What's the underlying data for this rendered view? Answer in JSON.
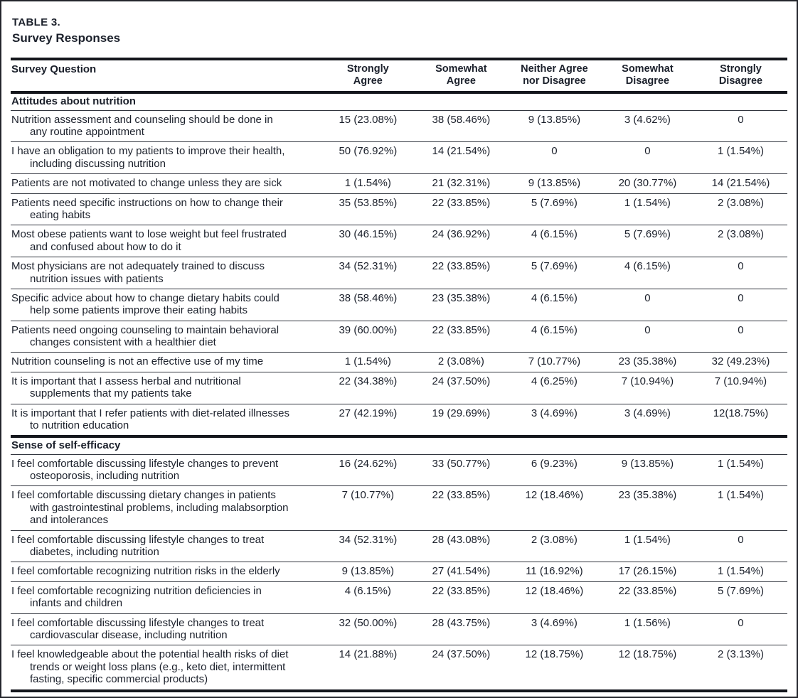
{
  "table": {
    "label": "TABLE 3.",
    "title": "Survey Responses",
    "columns": [
      "Survey Question",
      "Strongly\nAgree",
      "Somewhat\nAgree",
      "Neither Agree\nnor Disagree",
      "Somewhat\nDisagree",
      "Strongly\nDisagree"
    ],
    "sections": [
      {
        "title": "Attitudes about nutrition",
        "rows": [
          {
            "question": "Nutrition assessment and counseling should be done in any routine appointment",
            "values": [
              "15 (23.08%)",
              "38 (58.46%)",
              "9 (13.85%)",
              "3 (4.62%)",
              "0"
            ]
          },
          {
            "question": "I have an obligation to my patients to improve their health, including discussing nutrition",
            "values": [
              "50 (76.92%)",
              "14 (21.54%)",
              "0",
              "0",
              "1 (1.54%)"
            ]
          },
          {
            "question": "Patients are not motivated to change unless they are sick",
            "values": [
              "1 (1.54%)",
              "21 (32.31%)",
              "9 (13.85%)",
              "20 (30.77%)",
              "14 (21.54%)"
            ]
          },
          {
            "question": "Patients need specific instructions on how to change their eating habits",
            "values": [
              "35 (53.85%)",
              "22 (33.85%)",
              "5 (7.69%)",
              "1 (1.54%)",
              "2 (3.08%)"
            ]
          },
          {
            "question": "Most obese patients want to lose weight but feel frustrated and confused about how to do it",
            "values": [
              "30 (46.15%)",
              "24 (36.92%)",
              "4 (6.15%)",
              "5 (7.69%)",
              "2 (3.08%)"
            ]
          },
          {
            "question": "Most physicians are not adequately trained to discuss nutrition issues with patients",
            "values": [
              "34 (52.31%)",
              "22 (33.85%)",
              "5 (7.69%)",
              "4 (6.15%)",
              "0"
            ]
          },
          {
            "question": "Specific advice about how to change dietary habits could help some patients improve their eating habits",
            "values": [
              "38 (58.46%)",
              "23 (35.38%)",
              "4 (6.15%)",
              "0",
              "0"
            ]
          },
          {
            "question": "Patients need ongoing counseling to maintain behavioral changes consistent with a healthier diet",
            "values": [
              "39 (60.00%)",
              "22 (33.85%)",
              "4 (6.15%)",
              "0",
              "0"
            ]
          },
          {
            "question": "Nutrition counseling is not an effective use of my time",
            "values": [
              "1 (1.54%)",
              "2 (3.08%)",
              "7 (10.77%)",
              "23 (35.38%)",
              "32 (49.23%)"
            ]
          },
          {
            "question": "It is important that I assess herbal and nutritional supplements that my patients take",
            "values": [
              "22 (34.38%)",
              "24 (37.50%)",
              "4 (6.25%)",
              "7 (10.94%)",
              "7 (10.94%)"
            ]
          },
          {
            "question": "It is important that I refer patients with diet-related illnesses to nutrition education",
            "values": [
              "27 (42.19%)",
              "19 (29.69%)",
              "3 (4.69%)",
              "3 (4.69%)",
              "12(18.75%)"
            ]
          }
        ]
      },
      {
        "title": "Sense of self-efficacy",
        "rows": [
          {
            "question": "I feel comfortable discussing lifestyle changes to prevent osteoporosis, including nutrition",
            "values": [
              "16 (24.62%)",
              "33 (50.77%)",
              "6 (9.23%)",
              "9 (13.85%)",
              "1 (1.54%)"
            ]
          },
          {
            "question": "I feel comfortable discussing dietary changes in patients with gastrointestinal problems, including malabsorption and intolerances",
            "values": [
              "7 (10.77%)",
              "22 (33.85%)",
              "12 (18.46%)",
              "23 (35.38%)",
              "1 (1.54%)"
            ]
          },
          {
            "question": "I feel comfortable discussing lifestyle changes to treat diabetes, including nutrition",
            "values": [
              "34 (52.31%)",
              "28 (43.08%)",
              "2 (3.08%)",
              "1 (1.54%)",
              "0"
            ]
          },
          {
            "question": "I feel comfortable recognizing nutrition risks in the elderly",
            "values": [
              "9 (13.85%)",
              "27 (41.54%)",
              "11 (16.92%)",
              "17 (26.15%)",
              "1 (1.54%)"
            ]
          },
          {
            "question": "I feel comfortable recognizing nutrition deficiencies in infants and children",
            "values": [
              "4 (6.15%)",
              "22 (33.85%)",
              "12 (18.46%)",
              "22 (33.85%)",
              "5 (7.69%)"
            ]
          },
          {
            "question": "I feel comfortable discussing lifestyle changes to treat cardiovascular disease, including nutrition",
            "values": [
              "32 (50.00%)",
              "28 (43.75%)",
              "3 (4.69%)",
              "1 (1.56%)",
              "0"
            ]
          },
          {
            "question": "I feel knowledgeable about the potential health risks of diet trends or weight loss plans (e.g., keto diet, intermittent fasting, specific commercial products)",
            "values": [
              "14 (21.88%)",
              "24 (37.50%)",
              "12 (18.75%)",
              "12 (18.75%)",
              "2 (3.13%)"
            ]
          }
        ]
      }
    ]
  }
}
